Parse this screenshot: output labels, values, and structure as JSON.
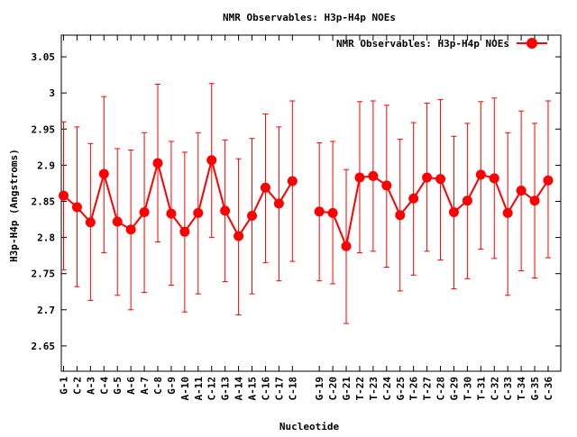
{
  "chart_data": {
    "type": "line",
    "title": "NMR Observables: H3p-H4p NOEs",
    "xlabel": "Nucleotide",
    "ylabel": "H3p-H4p (Angstroms)",
    "ylim": [
      2.615,
      3.08
    ],
    "yticks": [
      2.65,
      2.7,
      2.75,
      2.8,
      2.85,
      2.9,
      2.95,
      3,
      3.05
    ],
    "ytick_labels": [
      "2.65",
      "2.7",
      "2.75",
      "2.8",
      "2.85",
      "2.9",
      "2.95",
      "3",
      "3.05"
    ],
    "grid": false,
    "legend_position": "top-right",
    "color": "#ff0000",
    "series": [
      {
        "name": "NMR Observables: H3p-H4p NOEs",
        "segments": [
          {
            "categories": [
              "G-1",
              "C-2",
              "A-3",
              "C-4",
              "G-5",
              "A-6",
              "A-7",
              "C-8",
              "G-9",
              "A-10",
              "A-11",
              "C-12",
              "G-13",
              "A-14",
              "A-15",
              "C-16",
              "C-17",
              "C-18"
            ],
            "values": [
              2.858,
              2.842,
              2.821,
              2.888,
              2.822,
              2.811,
              2.835,
              2.903,
              2.833,
              2.808,
              2.834,
              2.907,
              2.837,
              2.802,
              2.83,
              2.869,
              2.847,
              2.878
            ],
            "err_low": [
              2.755,
              2.732,
              2.713,
              2.779,
              2.72,
              2.7,
              2.724,
              2.794,
              2.734,
              2.697,
              2.722,
              2.8,
              2.739,
              2.693,
              2.722,
              2.765,
              2.74,
              2.767
            ],
            "err_high": [
              2.96,
              2.953,
              2.93,
              2.995,
              2.923,
              2.921,
              2.945,
              3.012,
              2.933,
              2.918,
              2.945,
              3.013,
              2.935,
              2.909,
              2.937,
              2.971,
              2.953,
              2.989
            ]
          },
          {
            "categories": [
              "G-19",
              "C-20",
              "G-21",
              "T-22",
              "T-23",
              "C-24",
              "G-25",
              "T-26",
              "T-27",
              "C-28",
              "G-29",
              "T-30",
              "T-31",
              "C-32",
              "C-33",
              "T-34",
              "G-35",
              "C-36"
            ],
            "values": [
              2.836,
              2.834,
              2.788,
              2.883,
              2.885,
              2.872,
              2.831,
              2.854,
              2.883,
              2.881,
              2.835,
              2.851,
              2.887,
              2.882,
              2.834,
              2.865,
              2.851,
              2.879
            ],
            "err_low": [
              2.74,
              2.736,
              2.681,
              2.779,
              2.781,
              2.759,
              2.726,
              2.748,
              2.781,
              2.769,
              2.729,
              2.743,
              2.784,
              2.771,
              2.72,
              2.754,
              2.744,
              2.772
            ],
            "err_high": [
              2.931,
              2.933,
              2.894,
              2.988,
              2.989,
              2.983,
              2.936,
              2.959,
              2.986,
              2.991,
              2.94,
              2.958,
              2.988,
              2.993,
              2.945,
              2.975,
              2.958,
              2.989
            ]
          }
        ]
      }
    ]
  }
}
